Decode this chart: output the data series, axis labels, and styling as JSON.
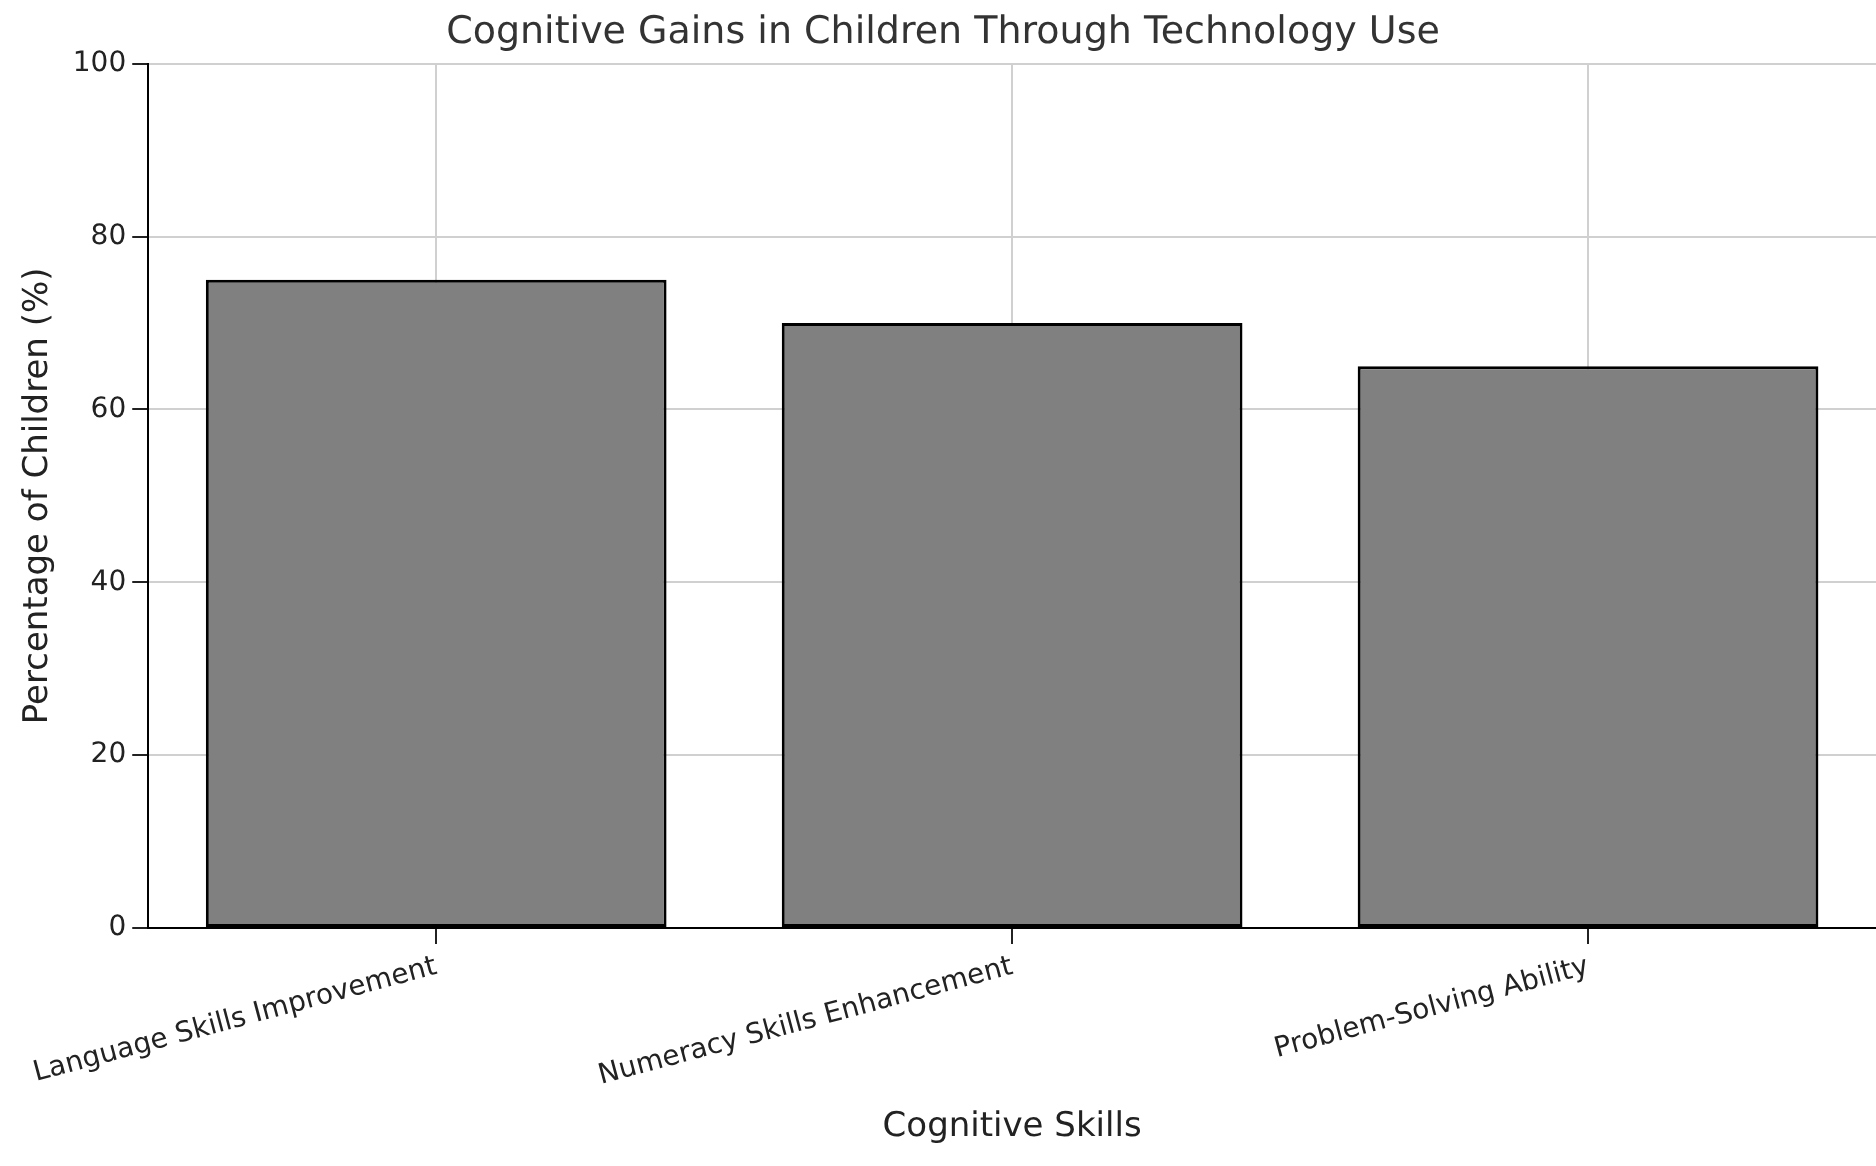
{
  "chart_data": {
    "type": "bar",
    "title": "Cognitive Gains in Children Through Technology Use",
    "xlabel": "Cognitive Skills",
    "ylabel": "Percentage of Children (%)",
    "categories": [
      "Language Skills Improvement",
      "Numeracy Skills Enhancement",
      "Problem-Solving Ability"
    ],
    "values": [
      75,
      70,
      65
    ],
    "color": "#808080",
    "ylim": [
      0,
      100
    ],
    "yticks": [
      0,
      20,
      40,
      60,
      80,
      100
    ],
    "grid": true
  }
}
